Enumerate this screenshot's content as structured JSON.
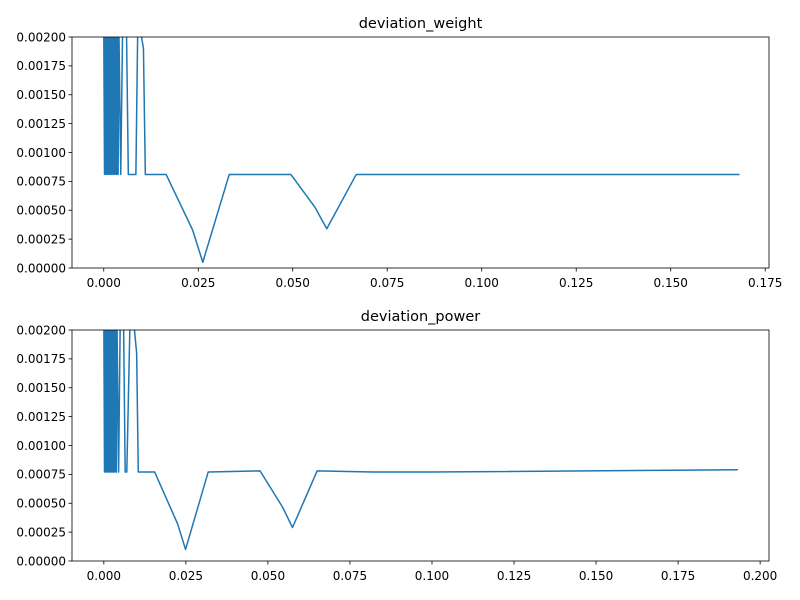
{
  "chart_data": [
    {
      "type": "line",
      "title": "deviation_weight",
      "xlabel": "",
      "ylabel": "",
      "xlim": [
        -0.0084,
        0.176
      ],
      "ylim": [
        0,
        0.002
      ],
      "xticks": [
        0.0,
        0.025,
        0.05,
        0.075,
        0.1,
        0.125,
        0.15,
        0.175
      ],
      "xtick_labels": [
        "0.000",
        "0.025",
        "0.050",
        "0.075",
        "0.100",
        "0.125",
        "0.150",
        "0.175"
      ],
      "yticks": [
        0,
        0.00025,
        0.0005,
        0.00075,
        0.001,
        0.00125,
        0.0015,
        0.00175,
        0.002
      ],
      "ytick_labels": [
        "0.00000",
        "0.00025",
        "0.00050",
        "0.00075",
        "0.00100",
        "0.00125",
        "0.00150",
        "0.00175",
        "0.00200"
      ],
      "grid": false,
      "color": "#1f77b4",
      "series": [
        {
          "x": [
            0.0,
            0.0002,
            0.0004,
            0.0006,
            0.0008,
            0.001,
            0.0012,
            0.0014,
            0.0016,
            0.0018,
            0.002,
            0.0022,
            0.0024,
            0.0026,
            0.0028,
            0.003,
            0.0032,
            0.0034,
            0.0036,
            0.0038,
            0.004,
            0.0045,
            0.005,
            0.006,
            0.0065,
            0.007,
            0.0085,
            0.009,
            0.0095,
            0.0105,
            0.011,
            0.0165,
            0.0235,
            0.0262,
            0.0332,
            0.0495,
            0.0558,
            0.059,
            0.0668,
            0.168
          ],
          "y": [
            0.0021,
            0.00081,
            0.0021,
            0.00081,
            0.0021,
            0.00081,
            0.0021,
            0.00081,
            0.0021,
            0.00081,
            0.0021,
            0.00081,
            0.0021,
            0.00081,
            0.0021,
            0.00081,
            0.0021,
            0.00081,
            0.0021,
            0.00081,
            0.0021,
            0.00081,
            0.0021,
            0.0021,
            0.00081,
            0.00081,
            0.00081,
            0.0021,
            0.0021,
            0.0019,
            0.00081,
            0.00081,
            0.00033,
            5e-05,
            0.00081,
            0.00081,
            0.00053,
            0.00034,
            0.00081,
            0.00081
          ]
        }
      ]
    },
    {
      "type": "line",
      "title": "deviation_power",
      "xlabel": "",
      "ylabel": "",
      "xlim": [
        -0.0097,
        0.2027
      ],
      "ylim": [
        0,
        0.002
      ],
      "xticks": [
        0.0,
        0.025,
        0.05,
        0.075,
        0.1,
        0.125,
        0.15,
        0.175,
        0.2
      ],
      "xtick_labels": [
        "0.000",
        "0.025",
        "0.050",
        "0.075",
        "0.100",
        "0.125",
        "0.150",
        "0.175",
        "0.200"
      ],
      "yticks": [
        0,
        0.00025,
        0.0005,
        0.00075,
        0.001,
        0.00125,
        0.0015,
        0.00175,
        0.002
      ],
      "ytick_labels": [
        "0.00000",
        "0.00025",
        "0.00050",
        "0.00075",
        "0.00100",
        "0.00125",
        "0.00150",
        "0.00175",
        "0.00200"
      ],
      "grid": false,
      "color": "#1f77b4",
      "series": [
        {
          "x": [
            0.0,
            0.0002,
            0.0004,
            0.0006,
            0.0008,
            0.001,
            0.0012,
            0.0014,
            0.0016,
            0.0018,
            0.002,
            0.0022,
            0.0024,
            0.0026,
            0.0028,
            0.003,
            0.0032,
            0.0034,
            0.0036,
            0.0038,
            0.004,
            0.0045,
            0.005,
            0.0055,
            0.006,
            0.0065,
            0.007,
            0.008,
            0.009,
            0.01,
            0.0105,
            0.0155,
            0.0225,
            0.0249,
            0.0318,
            0.0476,
            0.0544,
            0.0575,
            0.065,
            0.082,
            0.1,
            0.193
          ],
          "y": [
            0.0021,
            0.00077,
            0.0021,
            0.00077,
            0.0021,
            0.00077,
            0.0021,
            0.00077,
            0.0021,
            0.00077,
            0.0021,
            0.00077,
            0.0021,
            0.00077,
            0.0021,
            0.00077,
            0.0021,
            0.00077,
            0.0021,
            0.00077,
            0.0021,
            0.00077,
            0.0021,
            0.0021,
            0.0021,
            0.00077,
            0.00077,
            0.0021,
            0.0021,
            0.0018,
            0.00077,
            0.00077,
            0.00032,
            0.0001,
            0.00077,
            0.00078,
            0.00047,
            0.00029,
            0.00078,
            0.00077,
            0.00077,
            0.00079
          ]
        }
      ]
    }
  ]
}
